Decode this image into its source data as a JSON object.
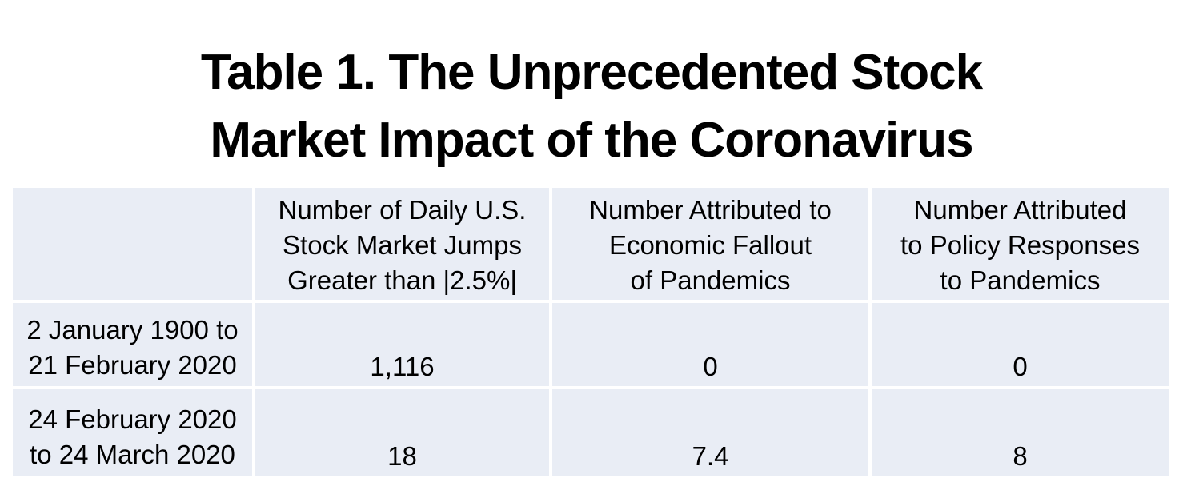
{
  "title": {
    "line1": "Table 1. The Unprecedented Stock",
    "line2": "Market Impact of the Coronavirus"
  },
  "table": {
    "header": {
      "col1": "",
      "col2": {
        "line1": "Number of Daily U.S.",
        "line2": "Stock Market Jumps",
        "line3": "Greater than |2.5%|"
      },
      "col3": {
        "line1": "Number Attributed to",
        "line2": "Economic Fallout",
        "line3": "of Pandemics"
      },
      "col4": {
        "line1": "Number Attributed",
        "line2": "to Policy Responses",
        "line3": "to Pandemics"
      }
    },
    "rows": [
      {
        "label": {
          "line1": "2 January 1900 to",
          "line2": "21 February 2020"
        },
        "jumps": "1,116",
        "economic": "0",
        "policy": "0"
      },
      {
        "label": {
          "line1": "24 February 2020",
          "line2": "to 24 March 2020"
        },
        "jumps": "18",
        "economic": "7.4",
        "policy": "8"
      }
    ]
  },
  "colors": {
    "cell_background": "#E9EDF5",
    "grid_lines": "#FFFFFF",
    "text": "#000000",
    "page_background": "#FFFFFF"
  },
  "chart_data": {
    "type": "table",
    "title": "Table 1. The Unprecedented Stock Market Impact of the Coronavirus",
    "columns": [
      "",
      "Number of Daily U.S. Stock Market Jumps Greater than |2.5%|",
      "Number Attributed to Economic Fallout of Pandemics",
      "Number Attributed to Policy Responses to Pandemics"
    ],
    "rows": [
      {
        "period": "2 January 1900 to 21 February 2020",
        "jumps": 1116,
        "attributed_economic_fallout": 0,
        "attributed_policy_responses": 0
      },
      {
        "period": "24 February 2020 to 24 March 2020",
        "jumps": 18,
        "attributed_economic_fallout": 7.4,
        "attributed_policy_responses": 8
      }
    ],
    "layout": {
      "grid": "white gridlines between shaded cells",
      "cell_shading": "#E9EDF5",
      "values_alignment": "bottom-center"
    }
  }
}
